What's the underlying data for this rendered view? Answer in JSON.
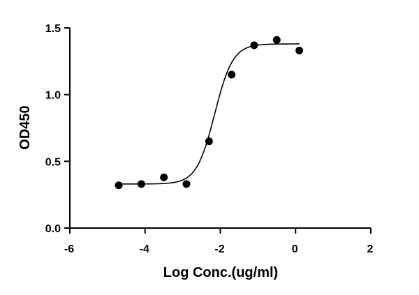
{
  "chart_data": {
    "type": "scatter",
    "title": "",
    "xlabel": "Log Conc.(ug/ml)",
    "ylabel": "OD450",
    "xlim": [
      -6,
      2
    ],
    "ylim": [
      0.0,
      1.5
    ],
    "x_ticks": [
      -6,
      -4,
      -2,
      0,
      2
    ],
    "x_tick_labels": [
      "-6",
      "-4",
      "-2",
      "0",
      "2"
    ],
    "y_ticks": [
      0.0,
      0.5,
      1.0,
      1.5
    ],
    "y_tick_labels": [
      "0.0",
      "0.5",
      "1.0",
      "1.5"
    ],
    "grid": false,
    "series": [
      {
        "x": [
          -4.7,
          -4.1,
          -3.5,
          -2.9,
          -2.3,
          -1.7,
          -1.1,
          -0.5,
          0.1
        ],
        "y": [
          0.32,
          0.33,
          0.38,
          0.33,
          0.65,
          1.15,
          1.37,
          1.41,
          1.33
        ],
        "fit": {
          "model": "4PL",
          "bottom": 0.33,
          "top": 1.38,
          "logEC50": -2.15,
          "hillslope": 1.8,
          "x_range": [
            -4.7,
            0.1
          ]
        },
        "color": "#000000"
      }
    ]
  }
}
